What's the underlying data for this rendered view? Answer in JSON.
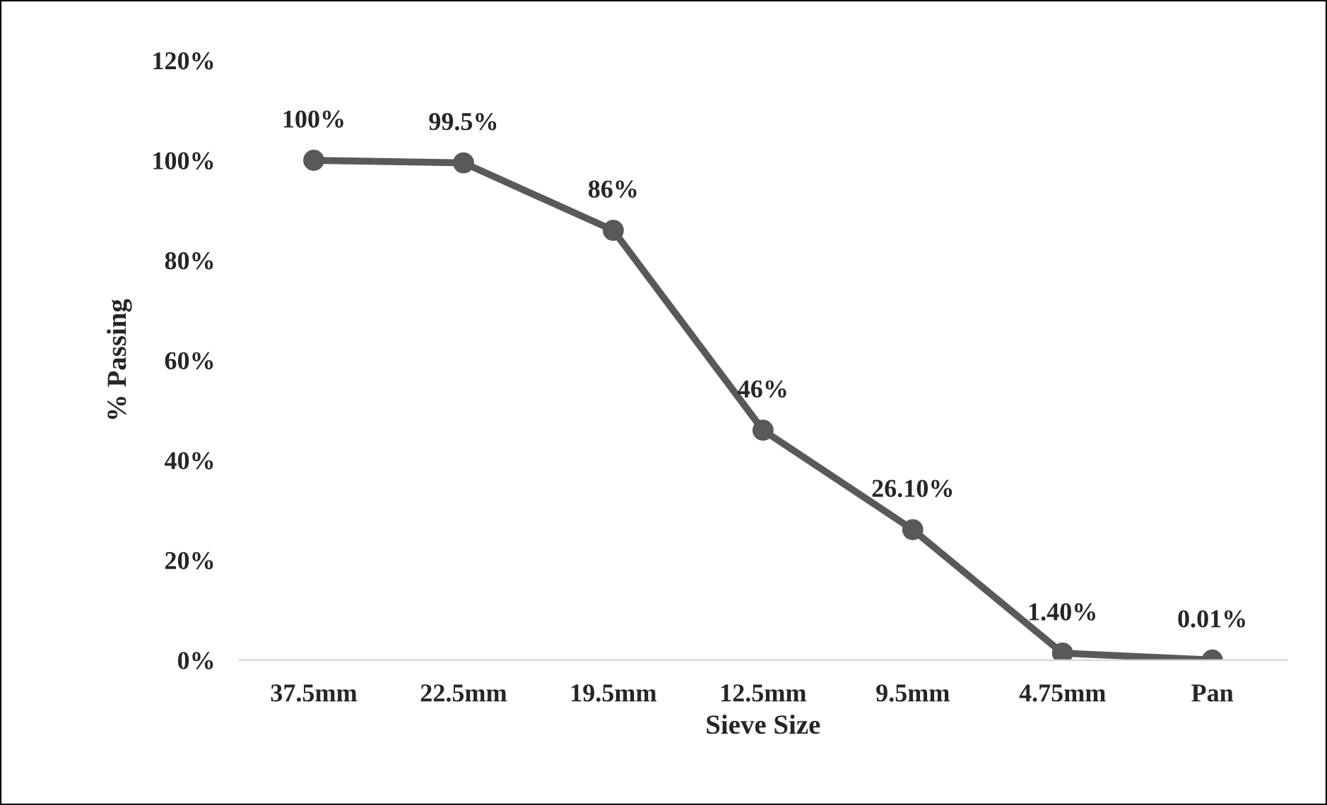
{
  "chart_data": {
    "type": "line",
    "xlabel": "Sieve Size",
    "ylabel": "% Passing",
    "categories": [
      "37.5mm",
      "22.5mm",
      "19.5mm",
      "12.5mm",
      "9.5mm",
      "4.75mm",
      "Pan"
    ],
    "series": [
      {
        "color": "#595959",
        "values": [
          100,
          99.5,
          86,
          46,
          26.1,
          1.4,
          0.01
        ],
        "value_labels": [
          "100%",
          "99.5%",
          "86%",
          "46%",
          "26.10%",
          "1.40%",
          "0.01%"
        ]
      }
    ],
    "ylim": [
      0,
      120
    ],
    "yticks": [
      {
        "value": 0,
        "label": "0%"
      },
      {
        "value": 20,
        "label": "20%"
      },
      {
        "value": 40,
        "label": "40%"
      },
      {
        "value": 60,
        "label": "60%"
      },
      {
        "value": 80,
        "label": "80%"
      },
      {
        "value": 100,
        "label": "100%"
      },
      {
        "value": 120,
        "label": "120%"
      }
    ],
    "grid": false,
    "legend": false,
    "marker": "circle",
    "line_style": "solid"
  }
}
